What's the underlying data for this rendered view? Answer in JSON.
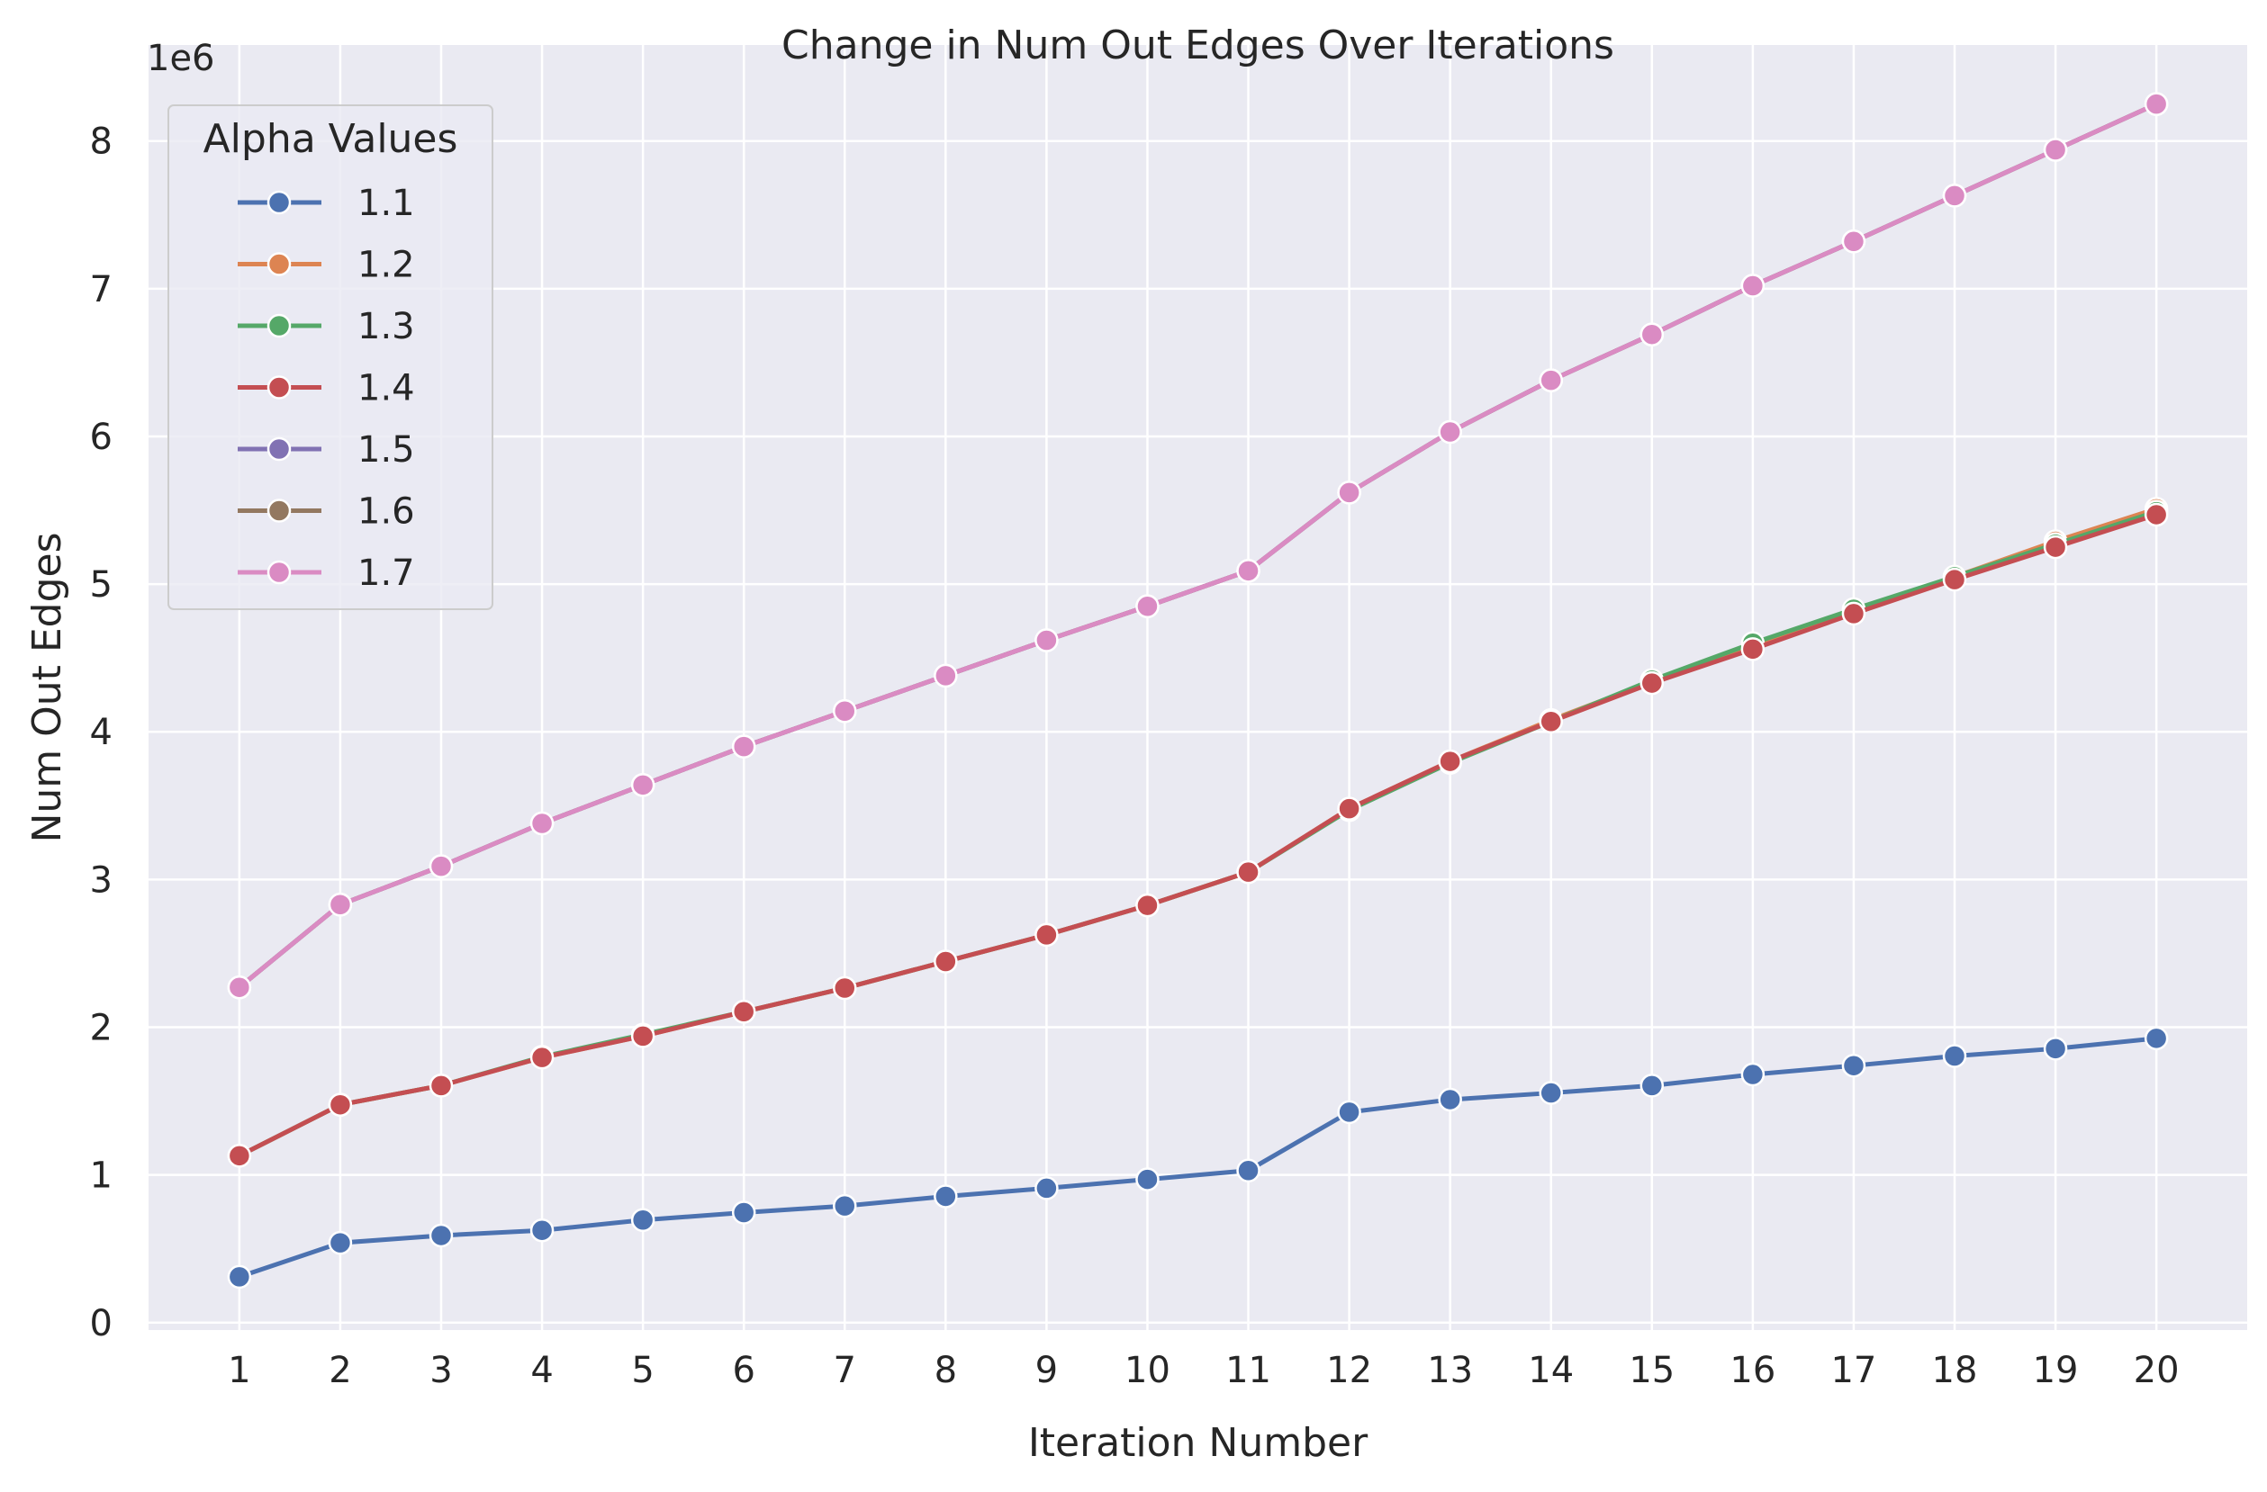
{
  "chart_data": {
    "type": "line",
    "title": "Change in Num Out Edges Over Iterations",
    "xlabel": "Iteration Number",
    "ylabel": "Num Out Edges",
    "y_offset_label": "1e6",
    "x": [
      1,
      2,
      3,
      4,
      5,
      6,
      7,
      8,
      9,
      10,
      11,
      12,
      13,
      14,
      15,
      16,
      17,
      18,
      19,
      20
    ],
    "xlim": [
      0.1,
      20.9
    ],
    "ylim": [
      -50000,
      8650000
    ],
    "yticks": [
      0,
      1000000,
      2000000,
      3000000,
      4000000,
      5000000,
      6000000,
      7000000,
      8000000
    ],
    "ytick_labels": [
      "0",
      "1",
      "2",
      "3",
      "4",
      "5",
      "6",
      "7",
      "8"
    ],
    "grid": true,
    "legend": {
      "title": "Alpha Values",
      "placement": "top-left"
    },
    "series": [
      {
        "name": "1.1",
        "color": "#4c72b0",
        "values": [
          310000,
          540000,
          590000,
          625000,
          695000,
          745000,
          790000,
          855000,
          910000,
          970000,
          1030000,
          1425000,
          1510000,
          1555000,
          1605000,
          1680000,
          1740000,
          1805000,
          1855000,
          1925000
        ]
      },
      {
        "name": "1.2",
        "color": "#dd8452",
        "values": [
          1130000,
          1475000,
          1605000,
          1795000,
          1940000,
          2105000,
          2265000,
          2445000,
          2625000,
          2825000,
          3050000,
          3480000,
          3800000,
          4080000,
          4340000,
          4580000,
          4820000,
          5050000,
          5290000,
          5510000
        ]
      },
      {
        "name": "1.3",
        "color": "#55a868",
        "values": [
          1130000,
          1475000,
          1605000,
          1800000,
          1950000,
          2105000,
          2265000,
          2445000,
          2625000,
          2825000,
          3050000,
          3470000,
          3790000,
          4070000,
          4350000,
          4600000,
          4830000,
          5050000,
          5270000,
          5490000
        ]
      },
      {
        "name": "1.4",
        "color": "#c44e52",
        "values": [
          1130000,
          1475000,
          1605000,
          1795000,
          1940000,
          2105000,
          2265000,
          2445000,
          2625000,
          2825000,
          3050000,
          3480000,
          3800000,
          4070000,
          4330000,
          4560000,
          4800000,
          5030000,
          5250000,
          5470000
        ]
      },
      {
        "name": "1.5",
        "color": "#8172b3",
        "values": [
          2270000,
          2830000,
          3090000,
          3380000,
          3640000,
          3900000,
          4140000,
          4380000,
          4620000,
          4850000,
          5090000,
          5620000,
          6030000,
          6380000,
          6690000,
          7020000,
          7320000,
          7630000,
          7940000,
          8250000
        ]
      },
      {
        "name": "1.6",
        "color": "#937860",
        "values": [
          2270000,
          2830000,
          3090000,
          3380000,
          3640000,
          3900000,
          4140000,
          4380000,
          4620000,
          4850000,
          5090000,
          5620000,
          6030000,
          6380000,
          6690000,
          7020000,
          7320000,
          7630000,
          7940000,
          8250000
        ]
      },
      {
        "name": "1.7",
        "color": "#da8bc3",
        "values": [
          2270000,
          2830000,
          3090000,
          3380000,
          3640000,
          3900000,
          4140000,
          4380000,
          4620000,
          4850000,
          5090000,
          5620000,
          6030000,
          6380000,
          6690000,
          7020000,
          7320000,
          7630000,
          7940000,
          8250000
        ]
      }
    ]
  }
}
